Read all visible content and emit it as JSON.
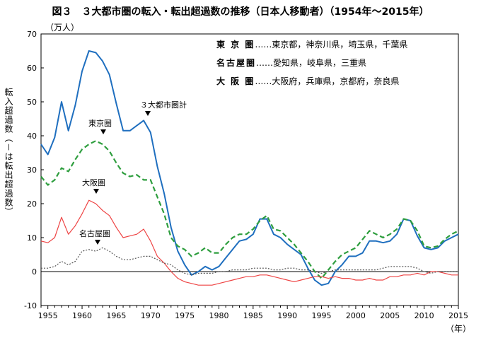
{
  "title": "図３　３大都市圏の転入・転出超過数の推移（日本人移動者）（1954年～2015年）",
  "units": {
    "y": "（万人）",
    "x": "（年）"
  },
  "ylabel": "転入超過数（－は転出超過数）",
  "legend": [
    {
      "key": "東 京 圏",
      "desc": "……東京都，神奈川県，埼玉県，千葉県"
    },
    {
      "key": "名古屋圏",
      "desc": "……愛知県，岐阜県，三重県"
    },
    {
      "key": "大 阪 圏",
      "desc": "……大阪府，兵庫県，京都府，奈良県"
    }
  ],
  "annotations": {
    "total": "３大都市圏計",
    "tokyo": "東京圏",
    "osaka": "大阪圏",
    "nagoya": "名古屋圏"
  },
  "colors": {
    "total": "#1f6fbf",
    "tokyo": "#2e9e3e",
    "osaka": "#ee4444",
    "nagoya": "#555555",
    "zero": "#000000"
  },
  "chart_data": {
    "type": "line",
    "xlim": [
      1954,
      2015
    ],
    "ylim": [
      -10,
      70
    ],
    "xticks": [
      1955,
      1960,
      1965,
      1970,
      1975,
      1980,
      1985,
      1990,
      1995,
      2000,
      2005,
      2010,
      2015
    ],
    "yticks": [
      -10,
      0,
      10,
      20,
      30,
      40,
      50,
      60,
      70
    ],
    "x": [
      1954,
      1955,
      1956,
      1957,
      1958,
      1959,
      1960,
      1961,
      1962,
      1963,
      1964,
      1965,
      1966,
      1967,
      1968,
      1969,
      1970,
      1971,
      1972,
      1973,
      1974,
      1975,
      1976,
      1977,
      1978,
      1979,
      1980,
      1981,
      1982,
      1983,
      1984,
      1985,
      1986,
      1987,
      1988,
      1989,
      1990,
      1991,
      1992,
      1993,
      1994,
      1995,
      1996,
      1997,
      1998,
      1999,
      2000,
      2001,
      2002,
      2003,
      2004,
      2005,
      2006,
      2007,
      2008,
      2009,
      2010,
      2011,
      2012,
      2013,
      2014,
      2015
    ],
    "series": [
      {
        "name": "３大都市圏計",
        "style": "solid",
        "values": [
          37.5,
          34.5,
          39.5,
          50,
          41.5,
          49,
          59,
          65,
          64.5,
          62,
          58,
          49.5,
          41.5,
          41.5,
          43,
          44.5,
          41,
          31,
          23,
          13,
          6,
          2,
          -1,
          0,
          1.5,
          0.5,
          1.5,
          4,
          6.5,
          9,
          9.5,
          11,
          15.5,
          15.5,
          11,
          10,
          8,
          6.5,
          5,
          1,
          -2.5,
          -4,
          -3.5,
          0,
          2,
          4.5,
          4.5,
          5.5,
          9,
          9,
          8.5,
          9,
          11,
          15.5,
          15,
          10.5,
          7,
          6.5,
          7,
          9,
          10,
          11
        ]
      },
      {
        "name": "東京圏",
        "style": "dashed",
        "values": [
          28,
          25.5,
          27,
          30.5,
          29.5,
          33,
          36,
          37.5,
          38.5,
          37.5,
          35.5,
          32,
          29,
          28,
          28.5,
          27,
          27,
          22,
          17,
          10,
          7.5,
          6.5,
          4.5,
          5.5,
          7,
          5.5,
          5.5,
          8,
          10,
          11,
          11,
          12.5,
          15,
          16.5,
          12.5,
          12,
          10,
          8,
          5.5,
          3,
          0,
          -2,
          0.5,
          3,
          5,
          6,
          7,
          9.5,
          12,
          11,
          10,
          11,
          12.5,
          15.5,
          15,
          12,
          7.5,
          7,
          7.5,
          9.5,
          11,
          12
        ]
      },
      {
        "name": "大阪圏",
        "style": "solid",
        "values": [
          9,
          8.5,
          10,
          16,
          11,
          13.5,
          17,
          21,
          20,
          18,
          16.5,
          13,
          10,
          10.5,
          11,
          12.5,
          9,
          4.5,
          2.5,
          0,
          -2,
          -3,
          -3.5,
          -4,
          -4,
          -4,
          -3.5,
          -3,
          -2.5,
          -2,
          -1.5,
          -1.5,
          -1,
          -1,
          -1.5,
          -2,
          -2.5,
          -3,
          -2.5,
          -2,
          -1.5,
          -1.5,
          -2,
          -1.5,
          -2,
          -2,
          -2.5,
          -2.5,
          -2,
          -2.5,
          -2.5,
          -1.5,
          -1.5,
          -1,
          -1,
          -0.5,
          -1,
          0,
          0,
          -0.5,
          -1,
          -1
        ]
      },
      {
        "name": "名古屋圏",
        "style": "dotted",
        "values": [
          1,
          1,
          1.5,
          3,
          2,
          3,
          6,
          6.5,
          6,
          7,
          6,
          4.5,
          3.5,
          3.5,
          4,
          4.5,
          4.5,
          3.5,
          2.5,
          2,
          0.5,
          -0.5,
          -1,
          -0.5,
          -0.5,
          -0.5,
          0,
          0,
          0.5,
          0.5,
          0.5,
          1,
          1,
          1,
          0.5,
          0.5,
          1,
          1,
          0.5,
          0.5,
          0,
          -0.5,
          0,
          0.5,
          0.5,
          0.5,
          0.5,
          0.5,
          0.5,
          0.5,
          1,
          1.5,
          1.5,
          1.5,
          1.5,
          1,
          0,
          -0.5,
          0,
          0,
          0,
          0
        ]
      }
    ]
  }
}
